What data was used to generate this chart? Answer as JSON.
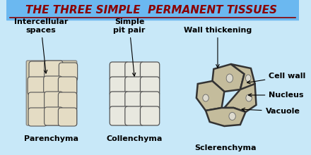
{
  "title": "THE THREE SIMPLE  PERMANENT TISSUES",
  "title_color": "#8B0000",
  "title_bg": "#6BB8F0",
  "bg_color": "#C8E8F8",
  "labels": {
    "parenchyma": "Parenchyma",
    "collenchyma": "Collenchyma",
    "sclerenchyma": "Sclerenchyma",
    "intercellular": "Intercellular\nspaces",
    "simple_pit": "Simple\npit pair",
    "wall_thickening": "Wall thickening",
    "cell_wall": "Cell wall",
    "nucleus": "Nucleus",
    "vacuole": "Vacuole"
  },
  "title_fontsize": 11,
  "label_fontsize": 8,
  "small_label_fontsize": 7.5
}
